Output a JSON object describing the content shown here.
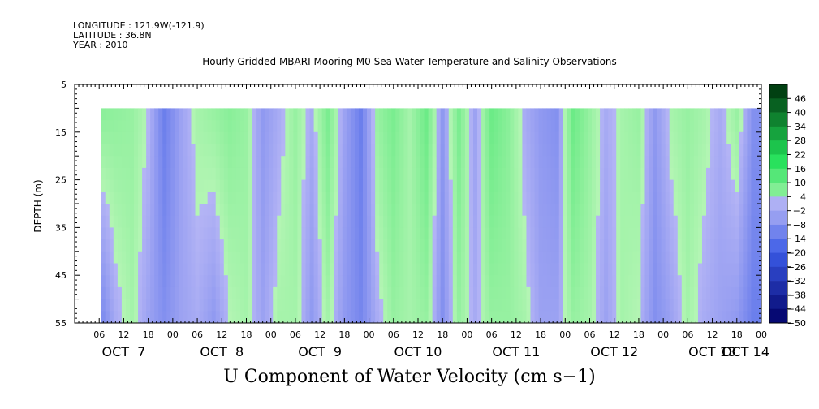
{
  "header": {
    "longitude": "LONGITUDE : 121.9W(-121.9)",
    "latitude": "LATITUDE : 36.8N",
    "year": "YEAR : 2010"
  },
  "chart_data": {
    "type": "heatmap",
    "title": "Hourly Gridded MBARI Mooring M0 Sea Water Temperature and Salinity Observations",
    "bottom_title": "U Component of Water Velocity (cm s−1)",
    "ylabel": "DEPTH (m)",
    "ylim": [
      5,
      55
    ],
    "y_inverted": true,
    "yticks": [
      5,
      15,
      25,
      35,
      45,
      55
    ],
    "xlim_hours": [
      0,
      168
    ],
    "data_depth_range": [
      10,
      55
    ],
    "data_start_hour": 6.5,
    "hour_tick_labels": [
      "06",
      "12",
      "18",
      "00",
      "06",
      "12",
      "18",
      "00",
      "06",
      "12",
      "18",
      "00",
      "06",
      "12",
      "18",
      "00",
      "06",
      "12",
      "18",
      "00",
      "06",
      "12",
      "18",
      "00",
      "06",
      "12",
      "18",
      "00"
    ],
    "day_labels": [
      "OCT  7",
      "OCT  8",
      "OCT  9",
      "OCT 10",
      "OCT 11",
      "OCT 12",
      "OCT 13",
      "OCT 14"
    ],
    "colorbar_levels": [
      -50,
      -44,
      -38,
      -32,
      -26,
      -20,
      -14,
      -8,
      -2,
      4,
      10,
      16,
      22,
      28,
      34,
      40,
      46
    ],
    "colorbar_labels": [
      "46",
      "40",
      "34",
      "28",
      "22",
      "16",
      "10",
      "4",
      "−2",
      "−8",
      "−14",
      "−20",
      "−26",
      "−32",
      "−38",
      "−44",
      "−50"
    ],
    "colors": {
      "neg_strong": "#000066",
      "neg_mid": "#3a5ae6",
      "neg_weak": "#b4b4f5",
      "pos_weak": "#b4f5b4",
      "pos_mid": "#22e058",
      "pos_strong": "#003a10"
    },
    "column_profiles": [
      {
        "hour": 6.5,
        "top": 6,
        "bottom": -10
      },
      {
        "hour": 10,
        "top": 5,
        "bottom": -2
      },
      {
        "hour": 14,
        "top": 4,
        "bottom": 2
      },
      {
        "hour": 18,
        "top": 0,
        "bottom": -4
      },
      {
        "hour": 22,
        "top": -12,
        "bottom": -8
      },
      {
        "hour": 26,
        "top": -4,
        "bottom": -4
      },
      {
        "hour": 30,
        "top": 2,
        "bottom": -2
      },
      {
        "hour": 34,
        "top": 4,
        "bottom": -6
      },
      {
        "hour": 38,
        "top": 6,
        "bottom": 0
      },
      {
        "hour": 42,
        "top": 4,
        "bottom": 2
      },
      {
        "hour": 46,
        "top": -6,
        "bottom": -4
      },
      {
        "hour": 50,
        "top": -2,
        "bottom": 2
      },
      {
        "hour": 54,
        "top": 4,
        "bottom": 2
      },
      {
        "hour": 58,
        "top": -2,
        "bottom": -6
      },
      {
        "hour": 62,
        "top": 8,
        "bottom": 2
      },
      {
        "hour": 66,
        "top": -4,
        "bottom": -6
      },
      {
        "hour": 70,
        "top": -12,
        "bottom": -10
      },
      {
        "hour": 74,
        "top": 4,
        "bottom": -2
      },
      {
        "hour": 78,
        "top": 8,
        "bottom": 4
      },
      {
        "hour": 82,
        "top": 2,
        "bottom": 2
      },
      {
        "hour": 86,
        "top": 10,
        "bottom": 4
      },
      {
        "hour": 90,
        "top": -6,
        "bottom": -8
      },
      {
        "hour": 94,
        "top": 8,
        "bottom": 4
      },
      {
        "hour": 98,
        "top": -4,
        "bottom": -2
      },
      {
        "hour": 102,
        "top": 10,
        "bottom": 4
      },
      {
        "hour": 106,
        "top": 6,
        "bottom": 4
      },
      {
        "hour": 110,
        "top": -2,
        "bottom": 2
      },
      {
        "hour": 114,
        "top": -6,
        "bottom": -4
      },
      {
        "hour": 118,
        "top": -8,
        "bottom": -4
      },
      {
        "hour": 122,
        "top": 10,
        "bottom": 4
      },
      {
        "hour": 126,
        "top": 4,
        "bottom": 2
      },
      {
        "hour": 130,
        "top": -2,
        "bottom": -4
      },
      {
        "hour": 134,
        "top": 2,
        "bottom": 2
      },
      {
        "hour": 138,
        "top": 4,
        "bottom": 0
      },
      {
        "hour": 142,
        "top": -6,
        "bottom": -8
      },
      {
        "hour": 146,
        "top": 2,
        "bottom": -4
      },
      {
        "hour": 150,
        "top": 4,
        "bottom": 2
      },
      {
        "hour": 154,
        "top": 2,
        "bottom": -2
      },
      {
        "hour": 158,
        "top": -2,
        "bottom": -4
      },
      {
        "hour": 162,
        "top": 4,
        "bottom": -6
      },
      {
        "hour": 166,
        "top": -8,
        "bottom": -12
      }
    ]
  }
}
